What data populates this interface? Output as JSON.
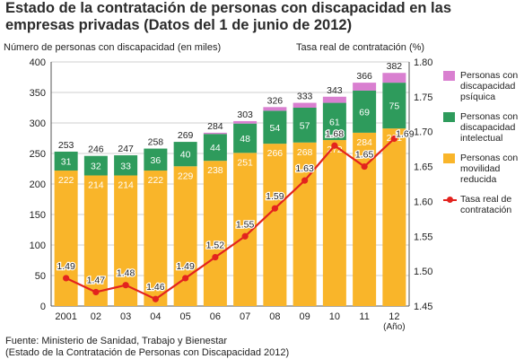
{
  "title": "Estado de la contratación de personas con discapacidad en las empresas privadas (Datos del 1 de junio de 2012)",
  "ylabel_left": "Número de personas con discapacidad (en miles)",
  "ylabel_right": "Tasa real de contratación (%)",
  "source": {
    "line1": "Fuente: Ministerio de Sanidad, Trabajo y Bienestar",
    "line2": "(Estado de la Contratación de Personas con Discapacidad 2012)"
  },
  "colors": {
    "physical": "#f9b52a",
    "intellectual": "#2e9b5c",
    "psychic": "#d97fd0",
    "rate": "#e3231e"
  },
  "chart_data": {
    "type": "bar",
    "stacked": true,
    "categories": [
      "2001",
      "02",
      "03",
      "04",
      "05",
      "06",
      "07",
      "08",
      "09",
      "10",
      "11",
      "12"
    ],
    "x_axis_suffix": "(Año)",
    "series": [
      {
        "name": "Personas con movilidad reducida",
        "values": [
          222,
          214,
          214,
          222,
          229,
          238,
          251,
          266,
          268,
          272,
          284,
          291
        ]
      },
      {
        "name": "Personas con discapacidad intelectual",
        "values": [
          31,
          32,
          33,
          36,
          40,
          44,
          48,
          54,
          57,
          61,
          69,
          75
        ]
      },
      {
        "name": "Personas con discapacidad psíquica",
        "values": [
          0,
          0,
          0,
          0,
          0,
          2,
          4,
          6,
          8,
          10,
          13,
          16
        ]
      }
    ],
    "totals": [
      253,
      246,
      247,
      258,
      269,
      284,
      303,
      326,
      333,
      343,
      366,
      382
    ],
    "line": {
      "name": "Tasa real de contratación",
      "axis": "right",
      "values": [
        1.49,
        1.47,
        1.48,
        1.46,
        1.49,
        1.52,
        1.55,
        1.59,
        1.63,
        1.68,
        1.65,
        1.69
      ]
    },
    "ylim_left": [
      0,
      400
    ],
    "yticks_left": [
      0,
      50,
      100,
      150,
      200,
      250,
      300,
      350,
      400
    ],
    "ylim_right": [
      1.45,
      1.8
    ],
    "yticks_right": [
      "1.45",
      "1.50",
      "1.55",
      "1.60",
      "1.65",
      "1.70",
      "1.75",
      "1.80"
    ],
    "grid": true,
    "legend_position": "right"
  }
}
